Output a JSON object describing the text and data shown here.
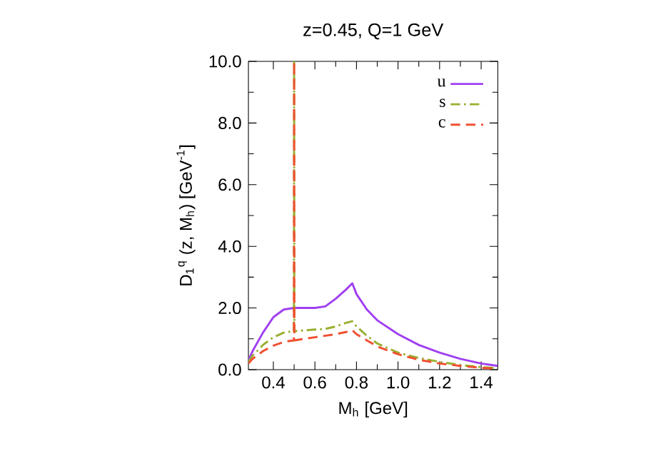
{
  "chart_data": {
    "type": "line",
    "title": "z=0.45, Q=1 GeV",
    "xlabel": "M$_{h}$ [GeV]",
    "ylabel": "D$_{1}$$^{q}$ (z, M$_{h}$) [GeV$^{-1}$]",
    "xlim": [
      0.28,
      1.48
    ],
    "ylim": [
      0,
      10
    ],
    "xticks": [
      {
        "value": 0.4,
        "label": "0.4"
      },
      {
        "value": 0.6,
        "label": "0.6"
      },
      {
        "value": 0.8,
        "label": "0.8"
      },
      {
        "value": 1,
        "label": "1.0"
      },
      {
        "value": 1.2,
        "label": "1.2"
      },
      {
        "value": 1.4,
        "label": "1.4"
      }
    ],
    "yticks": [
      {
        "value": 0,
        "label": "0.0"
      },
      {
        "value": 2,
        "label": "2.0"
      },
      {
        "value": 4,
        "label": "4.0"
      },
      {
        "value": 6,
        "label": "6.0"
      },
      {
        "value": 8,
        "label": "8.0"
      },
      {
        "value": 10,
        "label": "10.0"
      }
    ],
    "grid": false,
    "legend": "top right",
    "marker": "none",
    "series": [
      {
        "name": "u",
        "color": "#a040f0",
        "line_style": "solid",
        "x": [
          0.28,
          0.3,
          0.35,
          0.4,
          0.45,
          0.499,
          0.5,
          0.501,
          0.55,
          0.6,
          0.65,
          0.7,
          0.75,
          0.78,
          0.8,
          0.85,
          0.9,
          1.0,
          1.1,
          1.2,
          1.3,
          1.4,
          1.48
        ],
        "values": [
          0.3,
          0.6,
          1.2,
          1.7,
          1.95,
          2.0,
          null,
          2.0,
          2.0,
          2.0,
          2.05,
          2.3,
          2.6,
          2.8,
          2.45,
          1.95,
          1.6,
          1.15,
          0.8,
          0.55,
          0.35,
          0.2,
          0.12
        ]
      },
      {
        "name": "s",
        "color": "#99b030",
        "line_style": "dashdot",
        "x": [
          0.28,
          0.3,
          0.35,
          0.4,
          0.45,
          0.499,
          0.5,
          0.501,
          0.6,
          0.65,
          0.7,
          0.75,
          0.78,
          0.8,
          0.85,
          0.9,
          1.0,
          1.1,
          1.2,
          1.3,
          1.4,
          1.48
        ],
        "values": [
          0.25,
          0.45,
          0.8,
          1.05,
          1.2,
          1.25,
          10,
          1.25,
          1.3,
          1.32,
          1.4,
          1.52,
          1.57,
          1.4,
          1.1,
          0.85,
          0.55,
          0.38,
          0.25,
          0.15,
          0.08,
          0.05
        ]
      },
      {
        "name": "c",
        "color": "#f05030",
        "line_style": "dashed",
        "x": [
          0.28,
          0.3,
          0.35,
          0.4,
          0.45,
          0.499,
          0.5,
          0.501,
          0.6,
          0.7,
          0.75,
          0.78,
          0.8,
          0.85,
          0.9,
          1.0,
          1.1,
          1.2,
          1.3,
          1.4,
          1.48
        ],
        "values": [
          0.2,
          0.35,
          0.6,
          0.78,
          0.9,
          0.95,
          10,
          0.95,
          1.05,
          1.15,
          1.22,
          1.28,
          1.15,
          0.95,
          0.75,
          0.5,
          0.32,
          0.2,
          0.12,
          0.06,
          0.03
        ]
      }
    ]
  }
}
